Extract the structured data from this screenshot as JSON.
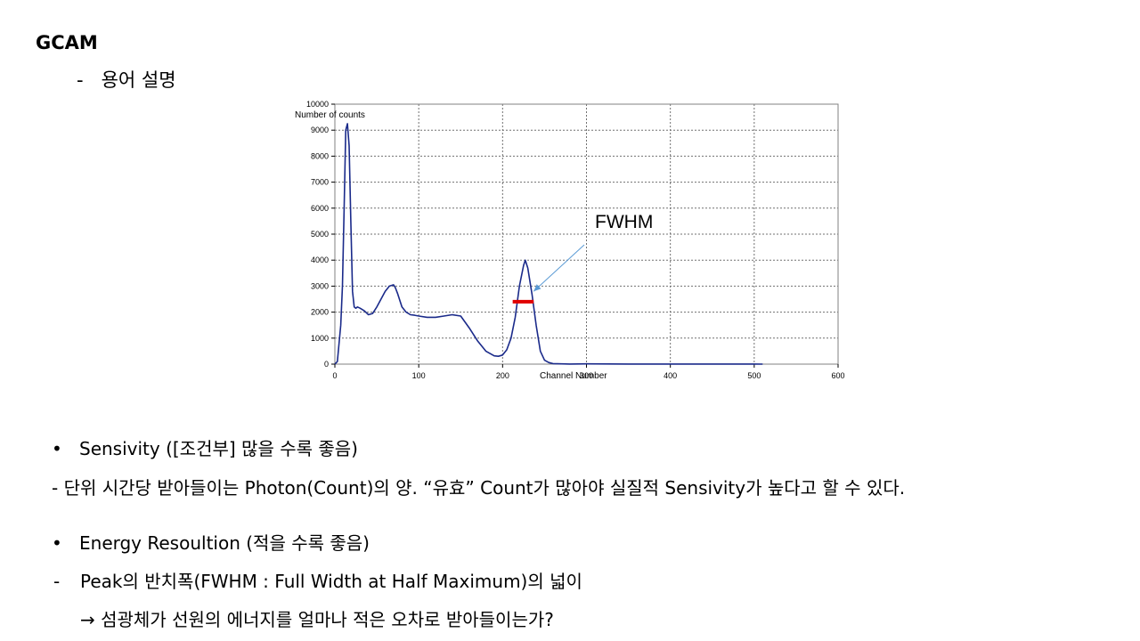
{
  "slide": {
    "title": "GCAM",
    "subtitle_dash": "-",
    "subtitle": "용어 설명"
  },
  "chart_data": {
    "type": "line",
    "ylabel": "Number of counts",
    "xlabel": "Channel Number",
    "xlim": [
      0,
      600
    ],
    "ylim": [
      0,
      10000
    ],
    "x_ticks": [
      "0",
      "100",
      "200",
      "300",
      "400",
      "500",
      "600"
    ],
    "y_ticks": [
      "0",
      "1000",
      "2000",
      "3000",
      "4000",
      "5000",
      "6000",
      "7000",
      "8000",
      "9000",
      "10000"
    ],
    "grid": true,
    "line_color": "#1a2a8a",
    "annotation": {
      "text": "FWHM",
      "marker_color": "#e00000",
      "arrow_color": "#5b9bd5",
      "fwhm_x_range": [
        212,
        237
      ],
      "fwhm_y": 2400,
      "arrow_to": [
        237,
        2800
      ]
    },
    "x": [
      0,
      3,
      5,
      7,
      9,
      11,
      13,
      15,
      17,
      19,
      21,
      23,
      25,
      27,
      30,
      35,
      40,
      45,
      50,
      55,
      60,
      65,
      70,
      72,
      75,
      80,
      85,
      90,
      95,
      100,
      110,
      120,
      130,
      140,
      150,
      160,
      170,
      180,
      190,
      195,
      200,
      205,
      210,
      215,
      220,
      225,
      227,
      230,
      235,
      240,
      245,
      250,
      255,
      260,
      270,
      280,
      300,
      350,
      400,
      450,
      500,
      510
    ],
    "y": [
      0,
      100,
      800,
      1500,
      3000,
      6000,
      9000,
      9250,
      8400,
      5500,
      2800,
      2200,
      2150,
      2200,
      2150,
      2050,
      1900,
      1950,
      2200,
      2500,
      2800,
      3000,
      3050,
      2950,
      2700,
      2200,
      2000,
      1900,
      1880,
      1850,
      1800,
      1800,
      1850,
      1900,
      1850,
      1400,
      900,
      500,
      320,
      300,
      350,
      550,
      1000,
      1800,
      3000,
      3800,
      4000,
      3700,
      2700,
      1500,
      500,
      150,
      60,
      20,
      10,
      5,
      10,
      5,
      5,
      5,
      5,
      0
    ]
  },
  "sections": {
    "sensitivity_bullet": "•",
    "sensitivity_title": "Sensivity ([조건부] 많을 수록 좋음)",
    "sensitivity_desc": "- 단위 시간당 받아들이는 Photon(Count)의 양. “유효” Count가 많아야 실질적 Sensivity가 높다고 할 수 있다.",
    "energy_bullet": "•",
    "energy_title": "Energy Resoultion (적을 수록 좋음)",
    "energy_dash": "-",
    "energy_desc": "Peak의 반치폭(FWHM : Full Width at Half Maximum)의 넓이",
    "energy_note": "→ 섬광체가 선원의 에너지를 얼마나 적은 오차로 받아들이는가?"
  }
}
